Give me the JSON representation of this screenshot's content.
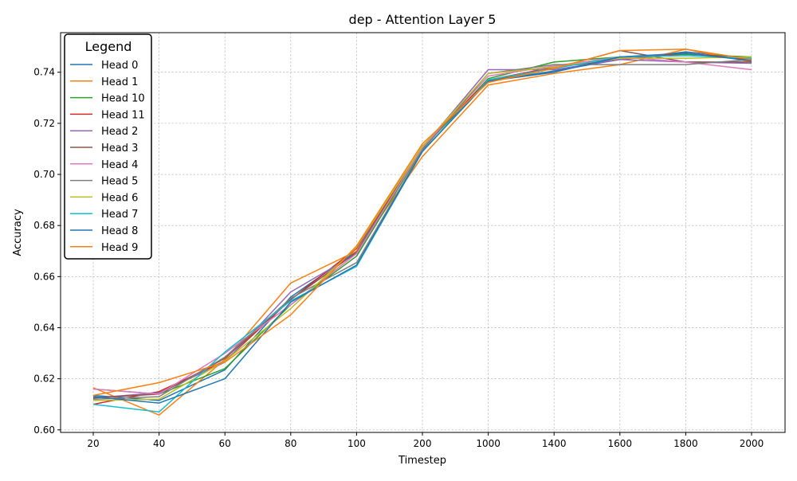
{
  "chart_data": {
    "type": "line",
    "title": "dep - Attention Layer 5",
    "xlabel": "Timestep",
    "ylabel": "Accuracy",
    "x": [
      "20",
      "40",
      "60",
      "80",
      "100",
      "200",
      "1000",
      "1400",
      "1600",
      "1800",
      "2000"
    ],
    "ylim": [
      0.599,
      0.7555
    ],
    "yticks": [
      "0.60",
      "0.62",
      "0.64",
      "0.66",
      "0.68",
      "0.70",
      "0.72",
      "0.74"
    ],
    "grid": true,
    "legend": {
      "title": "Legend",
      "placement": "top-left"
    },
    "series": [
      {
        "name": "Head 0",
        "color": "#1f77b4",
        "values": [
          0.6135,
          0.6115,
          0.6235,
          0.652,
          0.67,
          0.7105,
          0.7365,
          0.7405,
          0.745,
          0.748,
          0.7455
        ]
      },
      {
        "name": "Head 1",
        "color": "#ff7f0e",
        "values": [
          0.6165,
          0.6058,
          0.6275,
          0.6575,
          0.67,
          0.707,
          0.735,
          0.7395,
          0.743,
          0.749,
          0.744
        ]
      },
      {
        "name": "Head 10",
        "color": "#2ca02c",
        "values": [
          0.616,
          0.614,
          0.624,
          0.649,
          0.668,
          0.71,
          0.7375,
          0.744,
          0.746,
          0.747,
          0.746
        ]
      },
      {
        "name": "Head 11",
        "color": "#d62728",
        "values": [
          0.61,
          0.615,
          0.627,
          0.651,
          0.671,
          0.711,
          0.737,
          0.742,
          0.745,
          0.7475,
          0.745
        ]
      },
      {
        "name": "Head 2",
        "color": "#9467bd",
        "values": [
          0.6125,
          0.6145,
          0.6265,
          0.654,
          0.669,
          0.7105,
          0.741,
          0.741,
          0.745,
          0.744,
          0.7435
        ]
      },
      {
        "name": "Head 3",
        "color": "#8c564b",
        "values": [
          0.6125,
          0.614,
          0.628,
          0.651,
          0.6695,
          0.711,
          0.7365,
          0.7415,
          0.7485,
          0.744,
          0.744
        ]
      },
      {
        "name": "Head 4",
        "color": "#e377c2",
        "values": [
          0.616,
          0.614,
          0.63,
          0.649,
          0.669,
          0.7105,
          0.7385,
          0.7425,
          0.746,
          0.744,
          0.741
        ]
      },
      {
        "name": "Head 5",
        "color": "#7f7f7f",
        "values": [
          0.612,
          0.613,
          0.6285,
          0.6515,
          0.6655,
          0.7095,
          0.7395,
          0.743,
          0.743,
          0.743,
          0.745
        ]
      },
      {
        "name": "Head 6",
        "color": "#bcbd22",
        "values": [
          0.6115,
          0.612,
          0.627,
          0.6475,
          0.6715,
          0.711,
          0.7395,
          0.742,
          0.7455,
          0.7455,
          0.746
        ]
      },
      {
        "name": "Head 7",
        "color": "#17becf",
        "values": [
          0.61,
          0.607,
          0.6305,
          0.6505,
          0.664,
          0.709,
          0.737,
          0.7415,
          0.746,
          0.7465,
          0.7455
        ]
      },
      {
        "name": "Head 8",
        "color": "#1f77b4",
        "values": [
          0.613,
          0.6105,
          0.62,
          0.65,
          0.6645,
          0.709,
          0.7365,
          0.74,
          0.746,
          0.7475,
          0.7445
        ]
      },
      {
        "name": "Head 9",
        "color": "#ff7f0e",
        "values": [
          0.6135,
          0.6185,
          0.6265,
          0.645,
          0.672,
          0.712,
          0.736,
          0.7415,
          0.7485,
          0.749,
          0.745
        ]
      }
    ]
  }
}
